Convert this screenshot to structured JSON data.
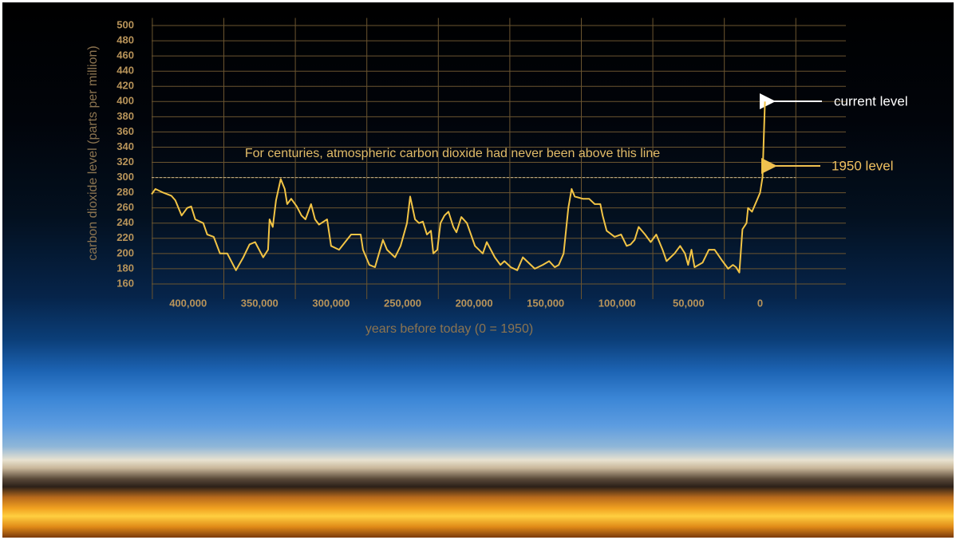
{
  "chart_data": {
    "type": "line",
    "ylabel": "carbon dioxide level (parts per million)",
    "xlabel": "years before today (0 = 1950)",
    "annotations": {
      "line_note": "For centuries, atmospheric carbon dioxide had never been above this line",
      "current": "current level",
      "level_1950": "1950 level"
    },
    "reference_line": 300,
    "color": "#f2c445",
    "xlim": [
      425500,
      -60000
    ],
    "ylim": [
      140,
      510
    ],
    "xticks": [
      {
        "value": 400000,
        "label": "400,000"
      },
      {
        "value": 350000,
        "label": "350,000"
      },
      {
        "value": 300000,
        "label": "300,000"
      },
      {
        "value": 250000,
        "label": "250,000"
      },
      {
        "value": 200000,
        "label": "200,000"
      },
      {
        "value": 150000,
        "label": "150,000"
      },
      {
        "value": 100000,
        "label": "100,000"
      },
      {
        "value": 50000,
        "label": "50,000"
      },
      0
    ],
    "x_gridlines": [
      425000,
      375000,
      325000,
      275000,
      225000,
      175000,
      125000,
      75000,
      25000,
      -25000
    ],
    "yticks": [
      160,
      180,
      200,
      220,
      240,
      260,
      280,
      300,
      320,
      340,
      360,
      380,
      400,
      420,
      440,
      460,
      480,
      500
    ],
    "grid": true,
    "x": [
      425500,
      422900,
      417300,
      411700,
      408900,
      404500,
      400600,
      397800,
      395000,
      389400,
      386600,
      382100,
      377700,
      372600,
      366500,
      361400,
      357000,
      353100,
      347500,
      344100,
      343000,
      340800,
      338500,
      335200,
      332400,
      330700,
      327900,
      324000,
      320700,
      317900,
      314000,
      311200,
      308400,
      302800,
      300000,
      294400,
      286000,
      279300,
      277700,
      273200,
      269300,
      266500,
      263700,
      260900,
      255300,
      251400,
      246900,
      244700,
      241300,
      238500,
      235800,
      233000,
      230200,
      228500,
      225700,
      223500,
      220700,
      217900,
      214500,
      212300,
      208900,
      205000,
      199400,
      193900,
      191100,
      185500,
      181600,
      178800,
      174300,
      169800,
      165900,
      163100,
      157500,
      152000,
      147500,
      143600,
      140800,
      137400,
      134100,
      131800,
      129600,
      124000,
      119600,
      115600,
      111700,
      110100,
      107300,
      101700,
      97200,
      93300,
      90500,
      87700,
      84900,
      80400,
      76500,
      72600,
      68200,
      65400,
      59800,
      55900,
      52500,
      50300,
      48000,
      45800,
      40200,
      35800,
      31800,
      26300,
      22300,
      19000,
      16800,
      14500,
      12300,
      9500,
      8400,
      5600,
      2200,
      0,
      -1700,
      -3400
    ],
    "values": [
      278,
      285,
      280,
      276,
      270,
      250,
      260,
      262,
      245,
      240,
      225,
      222,
      200,
      200,
      178,
      195,
      212,
      215,
      195,
      205,
      245,
      235,
      270,
      298,
      285,
      265,
      272,
      262,
      250,
      245,
      265,
      245,
      238,
      245,
      210,
      205,
      225,
      225,
      205,
      185,
      182,
      200,
      218,
      205,
      195,
      210,
      240,
      275,
      245,
      240,
      242,
      225,
      230,
      200,
      205,
      240,
      250,
      255,
      235,
      228,
      248,
      240,
      210,
      200,
      215,
      195,
      185,
      190,
      182,
      178,
      195,
      190,
      180,
      185,
      190,
      182,
      185,
      200,
      260,
      285,
      275,
      272,
      272,
      265,
      265,
      250,
      230,
      222,
      225,
      210,
      212,
      218,
      235,
      225,
      215,
      225,
      205,
      190,
      200,
      210,
      200,
      185,
      205,
      182,
      188,
      205,
      205,
      190,
      180,
      185,
      182,
      175,
      232,
      240,
      260,
      255,
      270,
      280,
      300,
      400
    ]
  }
}
